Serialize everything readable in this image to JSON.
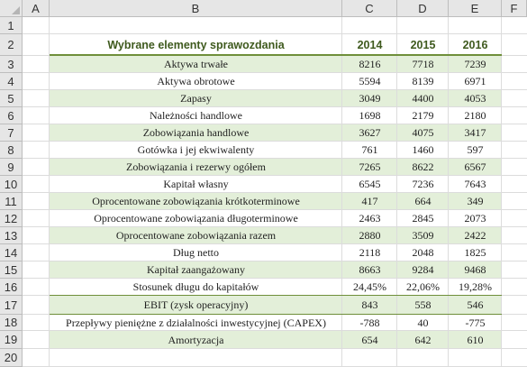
{
  "columns": [
    "A",
    "B",
    "C",
    "D",
    "E",
    "F"
  ],
  "rows": [
    "1",
    "2",
    "3",
    "4",
    "5",
    "6",
    "7",
    "8",
    "9",
    "10",
    "11",
    "12",
    "13",
    "14",
    "15",
    "16",
    "17",
    "18",
    "19",
    "20"
  ],
  "header": {
    "title": "Wybrane elementy sprawozdania",
    "years": [
      "2014",
      "2015",
      "2016"
    ]
  },
  "table": [
    {
      "label": "Aktywa trwałe",
      "values": [
        "8216",
        "7718",
        "7239"
      ]
    },
    {
      "label": "Aktywa obrotowe",
      "values": [
        "5594",
        "8139",
        "6971"
      ]
    },
    {
      "label": "Zapasy",
      "values": [
        "3049",
        "4400",
        "4053"
      ]
    },
    {
      "label": "Należności handlowe",
      "values": [
        "1698",
        "2179",
        "2180"
      ]
    },
    {
      "label": "Zobowiązania handlowe",
      "values": [
        "3627",
        "4075",
        "3417"
      ]
    },
    {
      "label": "Gotówka i jej ekwiwalenty",
      "values": [
        "761",
        "1460",
        "597"
      ]
    },
    {
      "label": "Zobowiązania i rezerwy ogółem",
      "values": [
        "7265",
        "8622",
        "6567"
      ]
    },
    {
      "label": "Kapitał własny",
      "values": [
        "6545",
        "7236",
        "7643"
      ]
    },
    {
      "label": "Oprocentowane zobowiązania krótkoterminowe",
      "values": [
        "417",
        "664",
        "349"
      ]
    },
    {
      "label": "Oprocentowane zobowiązania długoterminowe",
      "values": [
        "2463",
        "2845",
        "2073"
      ]
    },
    {
      "label": "Oprocentowane zobowiązania razem",
      "values": [
        "2880",
        "3509",
        "2422"
      ]
    },
    {
      "label": "Dług netto",
      "values": [
        "2118",
        "2048",
        "1825"
      ]
    },
    {
      "label": "Kapitał zaangażowany",
      "values": [
        "8663",
        "9284",
        "9468"
      ]
    },
    {
      "label": "Stosunek długu do kapitałów",
      "values": [
        "24,45%",
        "22,06%",
        "19,28%"
      ]
    },
    {
      "label": "EBIT (zysk operacyjny)",
      "values": [
        "843",
        "558",
        "546"
      ]
    },
    {
      "label": "Przepływy pieniężne z działalności inwestycyjnej (CAPEX)",
      "values": [
        "-788",
        "40",
        "-775"
      ]
    },
    {
      "label": "Amortyzacja",
      "values": [
        "654",
        "642",
        "610"
      ]
    }
  ],
  "colors": {
    "accent_green": "#6f8f3a",
    "band_green": "#e3efd9",
    "header_text": "#3f5a1e",
    "grid": "#dcdcdc",
    "header_bg": "#e6e6e6"
  }
}
